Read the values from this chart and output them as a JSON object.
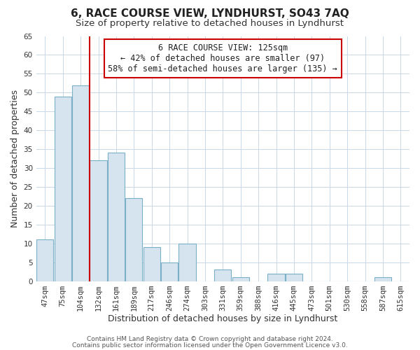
{
  "title": "6, RACE COURSE VIEW, LYNDHURST, SO43 7AQ",
  "subtitle": "Size of property relative to detached houses in Lyndhurst",
  "xlabel": "Distribution of detached houses by size in Lyndhurst",
  "ylabel": "Number of detached properties",
  "bar_labels": [
    "47sqm",
    "75sqm",
    "104sqm",
    "132sqm",
    "161sqm",
    "189sqm",
    "217sqm",
    "246sqm",
    "274sqm",
    "303sqm",
    "331sqm",
    "359sqm",
    "388sqm",
    "416sqm",
    "445sqm",
    "473sqm",
    "501sqm",
    "530sqm",
    "558sqm",
    "587sqm",
    "615sqm"
  ],
  "bar_values": [
    11,
    49,
    52,
    32,
    34,
    22,
    9,
    5,
    10,
    0,
    3,
    1,
    0,
    2,
    2,
    0,
    0,
    0,
    0,
    1,
    0
  ],
  "bar_color": "#d6e4f0",
  "bar_edge_color": "#7aafc8",
  "ylim": [
    0,
    65
  ],
  "yticks": [
    0,
    5,
    10,
    15,
    20,
    25,
    30,
    35,
    40,
    45,
    50,
    55,
    60,
    65
  ],
  "property_line_x": 2.5,
  "property_line_color": "#cc0000",
  "annotation_box_text": "6 RACE COURSE VIEW: 125sqm\n← 42% of detached houses are smaller (97)\n58% of semi-detached houses are larger (135) →",
  "annotation_box_color": "#ffffff",
  "annotation_box_edge_color": "#cc0000",
  "footer_line1": "Contains HM Land Registry data © Crown copyright and database right 2024.",
  "footer_line2": "Contains public sector information licensed under the Open Government Licence v3.0.",
  "background_color": "#ffffff",
  "grid_color": "#c8d8e8",
  "title_fontsize": 11,
  "subtitle_fontsize": 9.5,
  "axis_label_fontsize": 9,
  "tick_fontsize": 7.5,
  "annotation_fontsize": 8.5,
  "footer_fontsize": 6.5
}
